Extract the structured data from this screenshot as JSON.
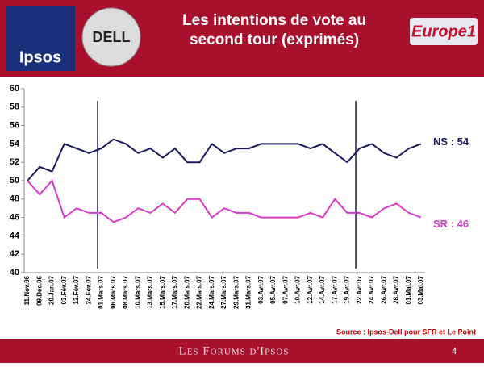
{
  "chart_data": {
    "type": "line",
    "title": "Les intentions de vote au second tour (exprimés)",
    "logos": [
      "Ipsos",
      "DELL",
      "Europe1"
    ],
    "categories": [
      "11.Nov.06",
      "09.Déc.06",
      "20.Jan.07",
      "03.Fév.07",
      "12.Fév.07",
      "24.Fév.07",
      "01.Mars.07",
      "06.Mars.07",
      "08.Mars.07",
      "10.Mars.07",
      "13.Mars.07",
      "15.Mars.07",
      "17.Mars.07",
      "20.Mars.07",
      "22.Mars.07",
      "24.Mars.07",
      "27.Mars.07",
      "29.Mars.07",
      "31.Mars.07",
      "03.Avr.07",
      "05.Avr.07",
      "07.Avr.07",
      "10.Avr.07",
      "12.Avr.07",
      "14.Avr.07",
      "17.Avr.07",
      "19.Avr.07",
      "22.Avr.07",
      "24.Avr.07",
      "26.Avr.07",
      "28.Avr.07",
      "01.Mai.07",
      "03.Mai.07"
    ],
    "series": [
      {
        "name": "NS : 54",
        "color": "#1a1a5e",
        "values": [
          50,
          51.5,
          51,
          54,
          53.5,
          53,
          53.5,
          54.5,
          54,
          53,
          53.5,
          52.5,
          53.5,
          52,
          52,
          54,
          53,
          53.5,
          53.5,
          54,
          54,
          54,
          54,
          53.5,
          54,
          53,
          52,
          53.5,
          54,
          53,
          52.5,
          53.5,
          54
        ]
      },
      {
        "name": "SR : 46",
        "color": "#d63cc8",
        "values": [
          50,
          48.5,
          50,
          46,
          47,
          46.5,
          46.5,
          45.5,
          46,
          47,
          46.5,
          47.5,
          46.5,
          48,
          48,
          46,
          47,
          46.5,
          46.5,
          46,
          46,
          46,
          46,
          46.5,
          46,
          48,
          46.5,
          46.5,
          46,
          47,
          47.5,
          46.5,
          46
        ]
      }
    ],
    "ylim": [
      40,
      60
    ],
    "yticks": [
      40,
      42,
      44,
      46,
      48,
      50,
      52,
      54,
      56,
      58,
      60
    ],
    "grid": false,
    "source": "Source : Ipsos-Dell pour SFR et Le Point",
    "footer": "Les Forums d'Ipsos",
    "page_number": "4"
  }
}
